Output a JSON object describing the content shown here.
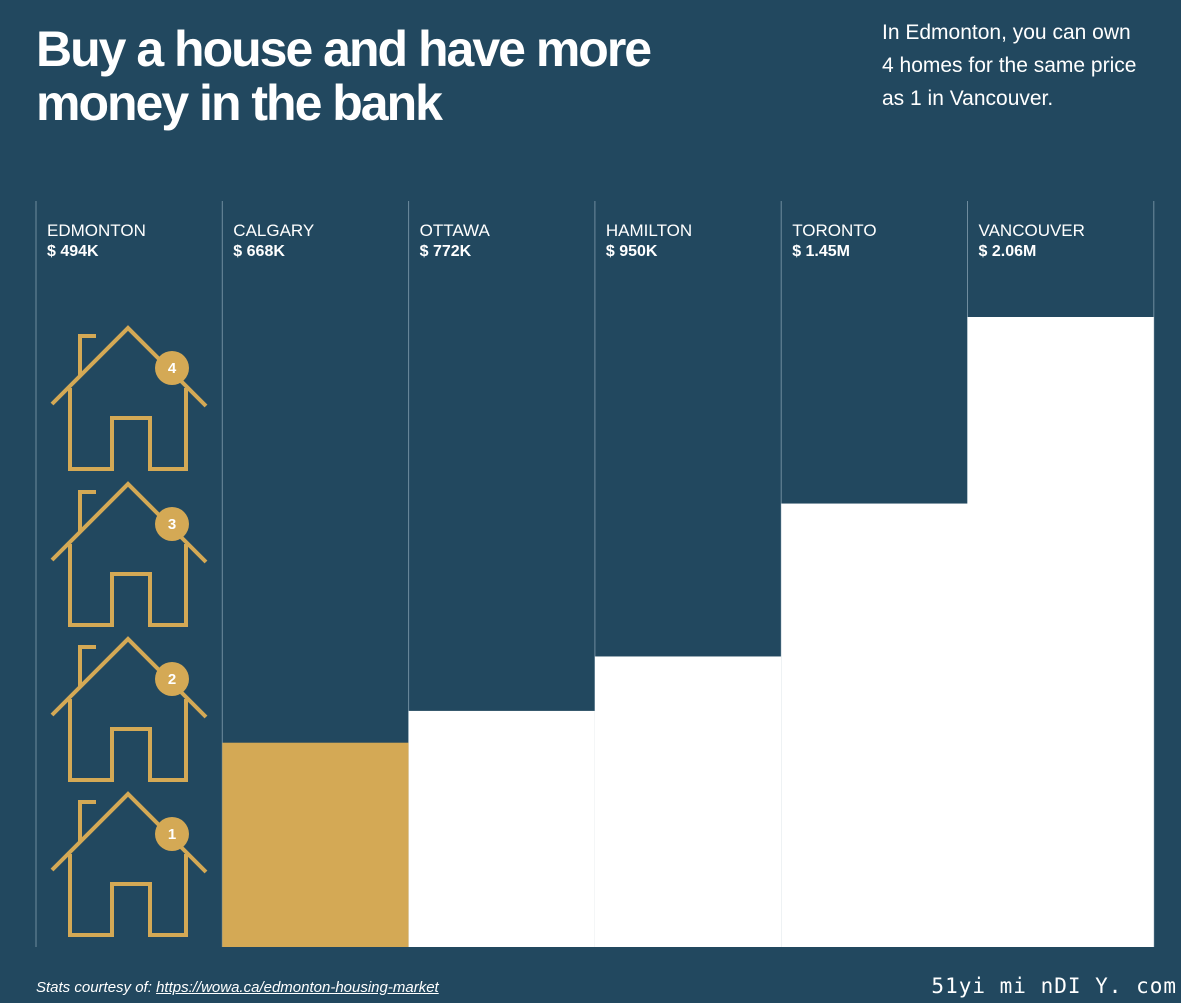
{
  "title": "Buy a house and have more money in the bank",
  "subtitle": "In Edmonton, you can own 4 homes for the same price as 1 in Vancouver.",
  "footer": {
    "prefix": "Stats courtesy of:",
    "link": "https://wowa.ca/edmonton-housing-market"
  },
  "watermark": "51yi mi nDI Y. com",
  "colors": {
    "background": "#22485f",
    "gold": "#d4a955",
    "bar": "#ffffff",
    "divider": "#6f8c9e"
  },
  "chart_data": {
    "type": "bar",
    "title": "Buy a house and have more money in the bank",
    "categories": [
      "EDMONTON",
      "CALGARY",
      "OTTAWA",
      "HAMILTON",
      "TORONTO",
      "VANCOUVER"
    ],
    "values": [
      494,
      668,
      772,
      950,
      1450,
      2060
    ],
    "units": "thousands CAD",
    "price_labels": [
      "$ 494K",
      "$ 668K",
      "$ 772K",
      "$ 950K",
      "$ 1.45M",
      "$ 2.06M"
    ],
    "bar_colors": [
      "#22485f",
      "#d4a955",
      "#ffffff",
      "#ffffff",
      "#ffffff",
      "#ffffff"
    ],
    "ylim": [
      0,
      2060
    ],
    "edmonton_house_icons": [
      "1",
      "2",
      "3",
      "4"
    ],
    "grid": false,
    "legend": "none"
  }
}
